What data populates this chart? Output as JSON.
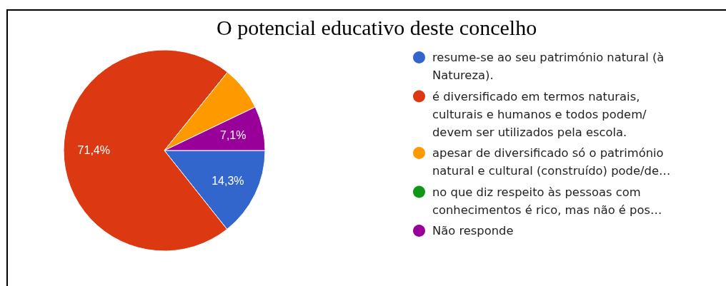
{
  "chart_data": {
    "type": "pie",
    "title": "O potencial educativo deste concelho",
    "categories": [
      "resume-se ao seu património natural (à Natureza).",
      "é diversificado em termos naturais, culturais e humanos e todos podem/devem ser utilizados pela escola.",
      "apesar de diversificado só o património natural e cultural (construído) pode/de…",
      "no que diz respeito às pessoas com conhecimentos é rico, mas não é pos…",
      "Não responde"
    ],
    "values": [
      14.3,
      71.4,
      7.1,
      0,
      7.1
    ],
    "colors": [
      "#3366cc",
      "#dc3912",
      "#ff9900",
      "#109618",
      "#990099"
    ],
    "value_labels": [
      "14,3%",
      "71,4%",
      null,
      null,
      "7,1%"
    ],
    "legend": "right"
  }
}
